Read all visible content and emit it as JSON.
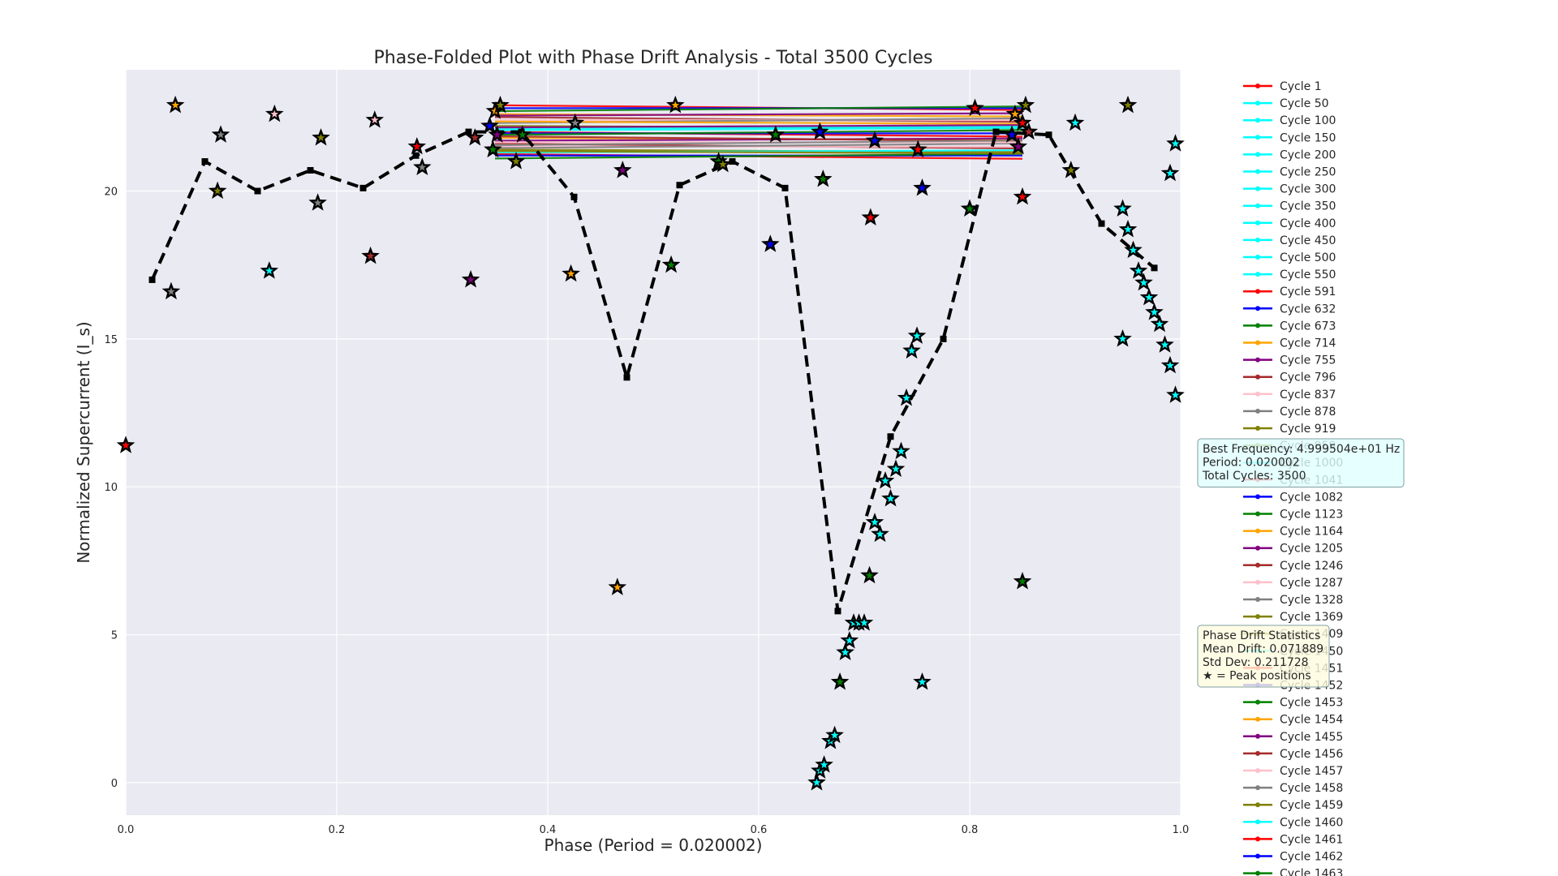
{
  "chart_data": {
    "type": "line",
    "title": "Phase-Folded Plot with Phase Drift Analysis - Total 3500 Cycles",
    "xlabel": "Phase (Period = 0.020002)",
    "ylabel": "Normalized Supercurrent (I_s)",
    "xlim": [
      0.0,
      1.0
    ],
    "ylim": [
      -1.1,
      24.1
    ],
    "xticks": [
      0.0,
      0.2,
      0.4,
      0.6,
      0.8,
      1.0
    ],
    "xtick_labels": [
      "0.0",
      "0.2",
      "0.4",
      "0.6",
      "0.8",
      "1.0"
    ],
    "yticks": [
      0,
      5,
      10,
      15,
      20
    ],
    "ytick_labels": [
      "0",
      "5",
      "10",
      "15",
      "20"
    ],
    "grid": true,
    "legend_position": "right",
    "background": "#eaeaf2",
    "mean_profile": {
      "style": "dashed",
      "color": "#000000",
      "x": [
        0.025,
        0.075,
        0.125,
        0.175,
        0.225,
        0.275,
        0.325,
        0.375,
        0.425,
        0.475,
        0.525,
        0.575,
        0.625,
        0.675,
        0.725,
        0.775,
        0.825,
        0.875,
        0.925,
        0.975
      ],
      "y": [
        17.0,
        21.0,
        20.0,
        20.7,
        20.1,
        21.2,
        22.0,
        22.0,
        19.8,
        13.7,
        20.2,
        21.0,
        20.1,
        5.8,
        11.7,
        15.0,
        22.0,
        21.9,
        18.9,
        17.4
      ]
    },
    "cycle_lines": {
      "x_start": 0.35,
      "x_end": 0.85,
      "y_values": [
        22.9,
        22.8,
        22.7,
        22.6,
        22.55,
        22.5,
        22.4,
        22.3,
        22.2,
        22.1,
        22.0,
        21.95,
        21.9,
        21.8,
        21.7,
        21.6,
        21.5,
        21.45,
        21.4,
        21.3,
        21.25,
        21.2,
        21.1,
        22.35,
        22.15,
        21.85,
        21.65,
        21.55,
        21.35,
        22.05
      ],
      "colors": [
        "#ff0000",
        "#0000ff",
        "#008000",
        "#ffa500",
        "#800080",
        "#a52a2a",
        "#ffc0cb",
        "#808080",
        "#808000",
        "#00ffff"
      ]
    },
    "peak_markers": {
      "marker": "star",
      "points": [
        {
          "x": 0.0,
          "y": 11.4,
          "c": "#ff0000"
        },
        {
          "x": 0.043,
          "y": 16.6,
          "c": "#808080"
        },
        {
          "x": 0.047,
          "y": 22.9,
          "c": "#ffa500"
        },
        {
          "x": 0.087,
          "y": 20.0,
          "c": "#808000"
        },
        {
          "x": 0.09,
          "y": 21.9,
          "c": "#808080"
        },
        {
          "x": 0.136,
          "y": 17.3,
          "c": "#00ffff"
        },
        {
          "x": 0.141,
          "y": 22.6,
          "c": "#ffc0cb"
        },
        {
          "x": 0.182,
          "y": 19.6,
          "c": "#808080"
        },
        {
          "x": 0.185,
          "y": 21.8,
          "c": "#808000"
        },
        {
          "x": 0.232,
          "y": 17.8,
          "c": "#a52a2a"
        },
        {
          "x": 0.236,
          "y": 22.4,
          "c": "#ffc0cb"
        },
        {
          "x": 0.276,
          "y": 21.5,
          "c": "#ff0000"
        },
        {
          "x": 0.281,
          "y": 20.8,
          "c": "#808080"
        },
        {
          "x": 0.327,
          "y": 17.0,
          "c": "#800080"
        },
        {
          "x": 0.331,
          "y": 21.8,
          "c": "#a52a2a"
        },
        {
          "x": 0.345,
          "y": 22.2,
          "c": "#0000ff"
        },
        {
          "x": 0.348,
          "y": 21.4,
          "c": "#008000"
        },
        {
          "x": 0.35,
          "y": 22.7,
          "c": "#ffa500"
        },
        {
          "x": 0.352,
          "y": 21.9,
          "c": "#800080"
        },
        {
          "x": 0.355,
          "y": 22.9,
          "c": "#808000"
        },
        {
          "x": 0.37,
          "y": 21.0,
          "c": "#808000"
        },
        {
          "x": 0.376,
          "y": 21.9,
          "c": "#008000"
        },
        {
          "x": 0.422,
          "y": 17.2,
          "c": "#ffa500"
        },
        {
          "x": 0.426,
          "y": 22.3,
          "c": "#808080"
        },
        {
          "x": 0.466,
          "y": 6.6,
          "c": "#ffa500"
        },
        {
          "x": 0.471,
          "y": 20.7,
          "c": "#800080"
        },
        {
          "x": 0.517,
          "y": 17.5,
          "c": "#008000"
        },
        {
          "x": 0.521,
          "y": 22.9,
          "c": "#ffa500"
        },
        {
          "x": 0.562,
          "y": 21.0,
          "c": "#008000"
        },
        {
          "x": 0.566,
          "y": 20.9,
          "c": "#808000"
        },
        {
          "x": 0.611,
          "y": 18.2,
          "c": "#0000ff"
        },
        {
          "x": 0.616,
          "y": 21.9,
          "c": "#008000"
        },
        {
          "x": 0.655,
          "y": 0.0,
          "c": "#00ffff"
        },
        {
          "x": 0.658,
          "y": 0.4,
          "c": "#00ffff"
        },
        {
          "x": 0.662,
          "y": 0.6,
          "c": "#00ffff"
        },
        {
          "x": 0.668,
          "y": 1.4,
          "c": "#00ffff"
        },
        {
          "x": 0.672,
          "y": 1.6,
          "c": "#00ffff"
        },
        {
          "x": 0.677,
          "y": 3.4,
          "c": "#008000"
        },
        {
          "x": 0.682,
          "y": 4.4,
          "c": "#00ffff"
        },
        {
          "x": 0.686,
          "y": 4.8,
          "c": "#00ffff"
        },
        {
          "x": 0.69,
          "y": 5.4,
          "c": "#00ffff"
        },
        {
          "x": 0.695,
          "y": 5.4,
          "c": "#00ffff"
        },
        {
          "x": 0.7,
          "y": 5.4,
          "c": "#00ffff"
        },
        {
          "x": 0.658,
          "y": 22.0,
          "c": "#0000ff"
        },
        {
          "x": 0.661,
          "y": 20.4,
          "c": "#008000"
        },
        {
          "x": 0.705,
          "y": 7.0,
          "c": "#008000"
        },
        {
          "x": 0.706,
          "y": 19.1,
          "c": "#ff0000"
        },
        {
          "x": 0.71,
          "y": 8.8,
          "c": "#00ffff"
        },
        {
          "x": 0.71,
          "y": 21.7,
          "c": "#0000ff"
        },
        {
          "x": 0.715,
          "y": 8.4,
          "c": "#00ffff"
        },
        {
          "x": 0.72,
          "y": 10.2,
          "c": "#00ffff"
        },
        {
          "x": 0.725,
          "y": 9.6,
          "c": "#00ffff"
        },
        {
          "x": 0.73,
          "y": 10.6,
          "c": "#00ffff"
        },
        {
          "x": 0.735,
          "y": 11.2,
          "c": "#00ffff"
        },
        {
          "x": 0.74,
          "y": 13.0,
          "c": "#00ffff"
        },
        {
          "x": 0.745,
          "y": 14.6,
          "c": "#00ffff"
        },
        {
          "x": 0.75,
          "y": 15.1,
          "c": "#00ffff"
        },
        {
          "x": 0.751,
          "y": 21.4,
          "c": "#ff0000"
        },
        {
          "x": 0.755,
          "y": 3.4,
          "c": "#00ffff"
        },
        {
          "x": 0.755,
          "y": 20.1,
          "c": "#0000ff"
        },
        {
          "x": 0.8,
          "y": 19.4,
          "c": "#008000"
        },
        {
          "x": 0.805,
          "y": 22.8,
          "c": "#ff0000"
        },
        {
          "x": 0.84,
          "y": 21.9,
          "c": "#0000ff"
        },
        {
          "x": 0.843,
          "y": 22.6,
          "c": "#ffa500"
        },
        {
          "x": 0.846,
          "y": 21.5,
          "c": "#800080"
        },
        {
          "x": 0.85,
          "y": 22.3,
          "c": "#ff0000"
        },
        {
          "x": 0.85,
          "y": 19.8,
          "c": "#ff0000"
        },
        {
          "x": 0.85,
          "y": 6.8,
          "c": "#008000"
        },
        {
          "x": 0.853,
          "y": 22.9,
          "c": "#808000"
        },
        {
          "x": 0.856,
          "y": 22.0,
          "c": "#a52a2a"
        },
        {
          "x": 0.896,
          "y": 20.7,
          "c": "#808000"
        },
        {
          "x": 0.9,
          "y": 22.3,
          "c": "#00ffff"
        },
        {
          "x": 0.945,
          "y": 15.0,
          "c": "#00ffff"
        },
        {
          "x": 0.945,
          "y": 19.4,
          "c": "#00ffff"
        },
        {
          "x": 0.95,
          "y": 18.7,
          "c": "#00ffff"
        },
        {
          "x": 0.95,
          "y": 22.9,
          "c": "#808000"
        },
        {
          "x": 0.955,
          "y": 18.0,
          "c": "#00ffff"
        },
        {
          "x": 0.96,
          "y": 17.3,
          "c": "#00ffff"
        },
        {
          "x": 0.965,
          "y": 16.9,
          "c": "#00ffff"
        },
        {
          "x": 0.97,
          "y": 16.4,
          "c": "#00ffff"
        },
        {
          "x": 0.975,
          "y": 15.9,
          "c": "#00ffff"
        },
        {
          "x": 0.98,
          "y": 15.5,
          "c": "#00ffff"
        },
        {
          "x": 0.985,
          "y": 14.8,
          "c": "#00ffff"
        },
        {
          "x": 0.99,
          "y": 14.1,
          "c": "#00ffff"
        },
        {
          "x": 0.99,
          "y": 20.6,
          "c": "#00ffff"
        },
        {
          "x": 0.995,
          "y": 13.1,
          "c": "#00ffff"
        },
        {
          "x": 0.995,
          "y": 21.6,
          "c": "#00ffff"
        }
      ]
    },
    "legend": [
      {
        "label": "Cycle 1",
        "color": "#ff0000"
      },
      {
        "label": "Cycle 50",
        "color": "#00ffff"
      },
      {
        "label": "Cycle 100",
        "color": "#00ffff"
      },
      {
        "label": "Cycle 150",
        "color": "#00ffff"
      },
      {
        "label": "Cycle 200",
        "color": "#00ffff"
      },
      {
        "label": "Cycle 250",
        "color": "#00ffff"
      },
      {
        "label": "Cycle 300",
        "color": "#00ffff"
      },
      {
        "label": "Cycle 350",
        "color": "#00ffff"
      },
      {
        "label": "Cycle 400",
        "color": "#00ffff"
      },
      {
        "label": "Cycle 450",
        "color": "#00ffff"
      },
      {
        "label": "Cycle 500",
        "color": "#00ffff"
      },
      {
        "label": "Cycle 550",
        "color": "#00ffff"
      },
      {
        "label": "Cycle 591",
        "color": "#ff0000"
      },
      {
        "label": "Cycle 632",
        "color": "#0000ff"
      },
      {
        "label": "Cycle 673",
        "color": "#008000"
      },
      {
        "label": "Cycle 714",
        "color": "#ffa500"
      },
      {
        "label": "Cycle 755",
        "color": "#800080"
      },
      {
        "label": "Cycle 796",
        "color": "#a52a2a"
      },
      {
        "label": "Cycle 837",
        "color": "#ffc0cb"
      },
      {
        "label": "Cycle 878",
        "color": "#808080"
      },
      {
        "label": "Cycle 919",
        "color": "#808000"
      },
      {
        "label": "Cycle 959",
        "color": "#808000"
      },
      {
        "label": "Cycle 1000",
        "color": "#00ffff"
      },
      {
        "label": "Cycle 1041",
        "color": "#ff0000"
      },
      {
        "label": "Cycle 1082",
        "color": "#0000ff"
      },
      {
        "label": "Cycle 1123",
        "color": "#008000"
      },
      {
        "label": "Cycle 1164",
        "color": "#ffa500"
      },
      {
        "label": "Cycle 1205",
        "color": "#800080"
      },
      {
        "label": "Cycle 1246",
        "color": "#a52a2a"
      },
      {
        "label": "Cycle 1287",
        "color": "#ffc0cb"
      },
      {
        "label": "Cycle 1328",
        "color": "#808080"
      },
      {
        "label": "Cycle 1369",
        "color": "#808000"
      },
      {
        "label": "Cycle 1409",
        "color": "#808000"
      },
      {
        "label": "Cycle 1450",
        "color": "#00ffff"
      },
      {
        "label": "Cycle 1451",
        "color": "#ff0000"
      },
      {
        "label": "Cycle 1452",
        "color": "#0000ff"
      },
      {
        "label": "Cycle 1453",
        "color": "#008000"
      },
      {
        "label": "Cycle 1454",
        "color": "#ffa500"
      },
      {
        "label": "Cycle 1455",
        "color": "#800080"
      },
      {
        "label": "Cycle 1456",
        "color": "#a52a2a"
      },
      {
        "label": "Cycle 1457",
        "color": "#ffc0cb"
      },
      {
        "label": "Cycle 1458",
        "color": "#808080"
      },
      {
        "label": "Cycle 1459",
        "color": "#808000"
      },
      {
        "label": "Cycle 1460",
        "color": "#00ffff"
      },
      {
        "label": "Cycle 1461",
        "color": "#ff0000"
      },
      {
        "label": "Cycle 1462",
        "color": "#0000ff"
      },
      {
        "label": "Cycle 1463",
        "color": "#008000"
      }
    ],
    "info_box_1": {
      "lines": [
        "Best Frequency: 4.999504e+01 Hz",
        "Period: 0.020002",
        "Total Cycles: 3500"
      ],
      "background": "#e0ffff"
    },
    "info_box_2": {
      "lines": [
        "Phase Drift Statistics",
        "Mean Drift: 0.071889",
        "Std Dev: 0.211728",
        "★ = Peak positions"
      ],
      "background": "#fffbe0"
    }
  }
}
